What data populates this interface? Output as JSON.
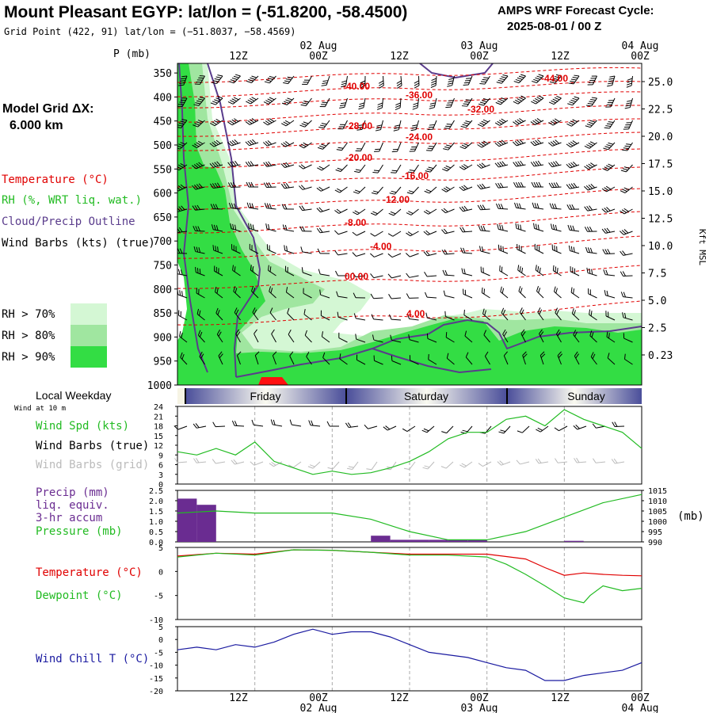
{
  "header": {
    "title": "Mount Pleasant EGYP:  lat/lon = (-51.8200, -58.4500)",
    "gridpoint": "Grid Point (422, 91) lat/lon = (−51.8037, −58.4569)",
    "cycle_title": "AMPS WRF Forecast Cycle:",
    "cycle_value": "2025-08-01 / 00  Z"
  },
  "model": {
    "label": "Model Grid ΔX:",
    "value": "6.000 km"
  },
  "legend": {
    "temperature": "Temperature (°C)",
    "rh": "RH (%, WRT liq. wat.)",
    "cloud": "Cloud/Precip Outline",
    "wind": "Wind Barbs (kts) (true)",
    "rh70": "RH > 70%",
    "rh80": "RH > 80%",
    "rh90": "RH > 90%"
  },
  "colors": {
    "temperature": "#e00000",
    "rh": "#22bb22",
    "cloud": "#5a3c8c",
    "rh70": "#d4f7d4",
    "rh80": "#a0e6a0",
    "rh90": "#33dd44",
    "precip": "#6a2c91",
    "pressure": "#22bb22",
    "dewpoint": "#22bb22",
    "windchill": "#1a1aa0",
    "grid_barbs": "#bbbbbb"
  },
  "time_axis": {
    "top_ticks": [
      "12Z",
      "00Z",
      "12Z",
      "00Z",
      "12Z",
      "00Z"
    ],
    "top_dates": [
      "02 Aug",
      "03 Aug",
      "04 Aug"
    ],
    "bottom_ticks": [
      "12Z",
      "00Z",
      "12Z",
      "00Z",
      "12Z",
      "00Z"
    ],
    "bottom_dates": [
      "02 Aug",
      "03 Aug",
      "04 Aug"
    ],
    "hours": [
      12,
      24,
      36,
      48,
      60,
      72
    ]
  },
  "weekday_strip": {
    "label": "Local Weekday",
    "sublabel": "Wind at 10 m",
    "days": [
      "Friday",
      "Saturday",
      "Sunday"
    ]
  },
  "chart_data": [
    {
      "type": "heatmap",
      "title": "",
      "ylabel": "P (mb)",
      "y2label": "Kft MSL",
      "y_ticks": [
        350,
        400,
        450,
        500,
        550,
        600,
        650,
        700,
        750,
        800,
        850,
        900,
        950,
        1000
      ],
      "y2_ticks": [
        "25.0",
        "22.5",
        "20.0",
        "17.5",
        "15.0",
        "12.5",
        "10.0",
        "7.5",
        "5.0",
        "2.5",
        "0.23"
      ],
      "x_range_hours": [
        0,
        72
      ],
      "temperature_contour_labels": [
        "-44.00",
        "-40.00",
        "-36.00",
        "-32.00",
        "-28.00",
        "-24.00",
        "-20.00",
        "-16.00",
        "-12.00",
        "-8.00",
        "-4.00",
        "00.00",
        "4.00"
      ]
    },
    {
      "type": "line",
      "title": "",
      "series": [
        {
          "name": "Wind Spd (kts)",
          "x": [
            0,
            3,
            6,
            9,
            12,
            15,
            18,
            21,
            24,
            27,
            30,
            33,
            36,
            39,
            42,
            45,
            48,
            51,
            54,
            57,
            60,
            63,
            66,
            69,
            72
          ],
          "values": [
            10,
            9,
            11,
            9,
            13,
            7,
            5,
            3,
            4,
            3,
            3.5,
            5,
            7,
            10,
            14,
            16,
            16,
            20,
            21,
            18,
            23,
            20,
            18,
            16,
            11
          ]
        },
        {
          "name": "Wind Barbs (true)",
          "values": []
        },
        {
          "name": "Wind Barbs (grid)",
          "values": []
        }
      ],
      "y_ticks": [
        0,
        3,
        6,
        9,
        12,
        15,
        18,
        21,
        24
      ],
      "ylim": [
        0,
        24
      ]
    },
    {
      "type": "bar",
      "title": "",
      "series": [
        {
          "name": "Precip (mm) liq. equiv. 3-hr accum",
          "x": [
            3,
            6,
            9,
            12,
            15,
            18,
            21,
            24,
            27,
            30,
            33,
            36,
            39,
            42,
            45,
            48,
            51,
            54,
            57,
            60,
            63,
            66,
            69
          ],
          "values": [
            2.1,
            1.8,
            0,
            0,
            0,
            0,
            0,
            0,
            0,
            0,
            0.3,
            0.1,
            0.1,
            0.1,
            0.1,
            0.1,
            0,
            0,
            0,
            0,
            0.05,
            0,
            0
          ]
        },
        {
          "name": "Pressure (mb)",
          "x": [
            0,
            6,
            12,
            18,
            24,
            30,
            36,
            42,
            48,
            54,
            60,
            66,
            72
          ],
          "values": [
            1004,
            1005,
            1004,
            1004,
            1004,
            1001,
            995,
            991,
            991,
            995,
            1002,
            1009,
            1013
          ]
        }
      ],
      "y_ticks": [
        0.0,
        0.5,
        1.0,
        1.5,
        2.0,
        2.5
      ],
      "y2_ticks": [
        990,
        995,
        1000,
        1005,
        1010,
        1015
      ],
      "y2label": "(mb)",
      "ylim": [
        0,
        2.5
      ],
      "y2lim": [
        990,
        1015
      ]
    },
    {
      "type": "line",
      "title": "",
      "series": [
        {
          "name": "Temperature (°C)",
          "x": [
            0,
            6,
            12,
            18,
            24,
            30,
            36,
            42,
            48,
            54,
            57,
            60,
            63,
            66,
            69,
            72
          ],
          "values": [
            3.2,
            3.8,
            3.6,
            4.5,
            4.4,
            4.0,
            3.6,
            3.6,
            3.6,
            2.6,
            0.8,
            -0.8,
            -0.3,
            -0.6,
            -0.8,
            -0.9
          ]
        },
        {
          "name": "Dewpoint (°C)",
          "x": [
            0,
            6,
            12,
            18,
            24,
            30,
            36,
            42,
            48,
            51,
            54,
            57,
            60,
            63,
            64,
            66,
            69,
            72
          ],
          "values": [
            3.0,
            3.8,
            3.4,
            4.5,
            4.4,
            4.0,
            3.4,
            3.4,
            3.0,
            1.5,
            -0.6,
            -3.0,
            -5.5,
            -6.5,
            -5.0,
            -3.0,
            -4.0,
            -3.5
          ]
        }
      ],
      "y_ticks": [
        5,
        0,
        -5,
        -10
      ],
      "ylim": [
        -10,
        5
      ]
    },
    {
      "type": "line",
      "title": "",
      "series": [
        {
          "name": "Wind Chill T (°C)",
          "x": [
            0,
            3,
            6,
            9,
            12,
            15,
            18,
            21,
            24,
            27,
            30,
            33,
            36,
            39,
            42,
            45,
            48,
            51,
            54,
            57,
            60,
            63,
            66,
            69,
            72
          ],
          "values": [
            -4,
            -3,
            -4,
            -2,
            -3,
            -1,
            2,
            4,
            2,
            3,
            3,
            1,
            -2,
            -5,
            -6,
            -7,
            -9,
            -11,
            -12,
            -16,
            -16,
            -14,
            -13,
            -12,
            -9
          ]
        }
      ],
      "y_ticks": [
        5,
        0,
        -5,
        -10,
        -15,
        -20
      ],
      "ylim": [
        -20,
        5
      ]
    }
  ],
  "panel_labels": {
    "wind_spd": "Wind Spd (kts)",
    "wind_true": "Wind Barbs (true)",
    "wind_grid": "Wind Barbs (grid)",
    "precip1": "Precip (mm)",
    "precip2": "liq. equiv.",
    "precip3": "3-hr accum",
    "pressure": "Pressure (mb)",
    "temperature": "Temperature (°C)",
    "dewpoint": "Dewpoint (°C)",
    "windchill": "Wind Chill T (°C)"
  }
}
